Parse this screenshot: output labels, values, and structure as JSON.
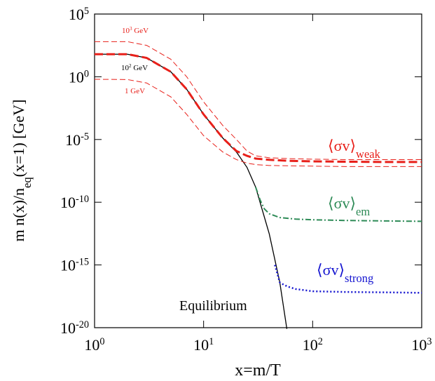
{
  "chart_data": {
    "type": "line",
    "log_x": true,
    "log_y": true,
    "xlabel": "x=m/T",
    "ylabel": [
      "m n(x)/n",
      "eq",
      "(x=1) [GeV]"
    ],
    "xlim": [
      1,
      1000
    ],
    "xticks": [
      {
        "value": 1,
        "label": [
          "10",
          "0"
        ]
      },
      {
        "value": 10,
        "label": [
          "10",
          "1"
        ]
      },
      {
        "value": 100,
        "label": [
          "10",
          "2"
        ]
      },
      {
        "value": 1000,
        "label": [
          "10",
          "3"
        ]
      }
    ],
    "ylim": [
      1e-20,
      100000
    ],
    "yticks": [
      {
        "value": 1e-20,
        "label": [
          "10",
          "-20"
        ]
      },
      {
        "value": 1e-15,
        "label": [
          "10",
          "-15"
        ]
      },
      {
        "value": 1e-10,
        "label": [
          "10",
          "-10"
        ]
      },
      {
        "value": 1e-05,
        "label": [
          "10",
          "-5"
        ]
      },
      {
        "value": 1,
        "label": [
          "10",
          "0"
        ]
      },
      {
        "value": 100000,
        "label": [
          "10",
          "5"
        ]
      }
    ],
    "series": [
      {
        "name": "Equilibrium",
        "color": "#000000",
        "style": "solid",
        "x": [
          1,
          2,
          3,
          5,
          7,
          10,
          15,
          20,
          25,
          30,
          40,
          50,
          58
        ],
        "values": [
          63,
          63,
          32,
          2.5,
          0.1,
          0.001,
          1.3e-05,
          1e-06,
          6e-08,
          1.6e-09,
          3e-13,
          4e-17,
          8e-21
        ]
      },
      {
        "name": [
          "⟨σv⟩",
          "weak"
        ],
        "color": "#e8201a",
        "style": "thick-dash",
        "x": [
          1,
          2,
          3,
          5,
          7,
          10,
          15,
          20,
          25,
          30,
          40,
          60,
          100,
          200,
          500,
          1000
        ],
        "values": [
          63,
          63,
          32,
          2.5,
          0.1,
          0.001,
          1.3e-05,
          1.2e-06,
          5e-07,
          3e-07,
          2.4e-07,
          2e-07,
          1.8e-07,
          1.7e-07,
          1.6e-07,
          1.6e-07
        ]
      },
      {
        "name": [
          "10",
          "3",
          " GeV"
        ],
        "color": "#e8201a",
        "style": "thin-dash",
        "x": [
          1,
          2,
          3,
          5,
          7,
          10,
          15,
          20,
          25,
          30,
          40,
          60,
          100,
          200,
          500,
          1000
        ],
        "values": [
          630,
          630,
          320,
          25,
          1,
          0.01,
          0.00013,
          1e-05,
          1.2e-06,
          5e-07,
          3.5e-07,
          3e-07,
          2.7e-07,
          2.5e-07,
          2.5e-07,
          2.5e-07
        ]
      },
      {
        "name": [
          "1 GeV"
        ],
        "color": "#e8201a",
        "style": "thin-dash",
        "x": [
          1,
          2,
          3,
          5,
          7,
          10,
          15,
          20,
          25,
          30,
          40,
          60,
          100,
          200,
          500,
          1000
        ],
        "values": [
          0.63,
          0.6,
          0.32,
          0.025,
          0.001,
          2e-05,
          1e-06,
          2.5e-07,
          1.3e-07,
          1e-07,
          8.5e-08,
          8e-08,
          7.5e-08,
          7e-08,
          7e-08,
          7e-08
        ]
      },
      {
        "name": [
          "⟨σv⟩",
          "em"
        ],
        "color": "#2e8b57",
        "style": "dash-dot",
        "x": [
          30,
          33,
          36,
          40,
          50,
          70,
          100,
          200,
          500,
          1000
        ],
        "values": [
          1.6e-09,
          1.5e-10,
          3e-11,
          1.2e-11,
          6e-12,
          4.5e-12,
          4e-12,
          3.5e-12,
          3.2e-12,
          3e-12
        ]
      },
      {
        "name": [
          "⟨σv⟩",
          "strong"
        ],
        "color": "#1515d0",
        "style": "dotted",
        "x": [
          45,
          50,
          55,
          60,
          70,
          100,
          200,
          500,
          1000
        ],
        "values": [
          1e-15,
          4e-17,
          2.5e-17,
          1.8e-17,
          1.2e-17,
          8e-18,
          7e-18,
          6.5e-18,
          6e-18
        ]
      }
    ],
    "annotations": [
      {
        "text": [
          "10",
          "2",
          " GeV"
        ],
        "color": "#000000"
      }
    ]
  }
}
